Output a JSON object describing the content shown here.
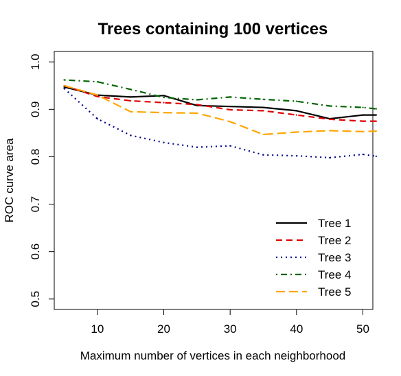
{
  "chart_data": {
    "type": "line",
    "title": "Trees containing 100 vertices",
    "xlabel": "Maximum number of vertices in each neighborhood",
    "ylabel": "ROC curve area",
    "xlim": [
      3.5,
      51.5
    ],
    "ylim": [
      0.478,
      1.022
    ],
    "x_ticks": [
      10,
      20,
      30,
      40,
      50
    ],
    "y_ticks": [
      0.5,
      0.6,
      0.7,
      0.8,
      0.9,
      1.0
    ],
    "x_tick_labels": [
      "10",
      "20",
      "30",
      "40",
      "50"
    ],
    "y_tick_labels": [
      "0.5",
      "0.6",
      "0.7",
      "0.8",
      "0.9",
      "1.0"
    ],
    "grid": false,
    "legend_position": "bottom-right",
    "x": [
      5,
      10,
      15,
      20,
      25,
      30,
      35,
      40,
      45,
      50,
      52
    ],
    "series": [
      {
        "name": "Tree 1",
        "color": "#000000",
        "dash": "solid",
        "values": [
          0.947,
          0.93,
          0.926,
          0.929,
          0.908,
          0.906,
          0.904,
          0.897,
          0.88,
          0.888,
          0.888
        ]
      },
      {
        "name": "Tree 2",
        "color": "#e00000",
        "dash": "dashed",
        "values": [
          0.95,
          0.927,
          0.918,
          0.914,
          0.91,
          0.899,
          0.897,
          0.888,
          0.879,
          0.875,
          0.875
        ]
      },
      {
        "name": "Tree 3",
        "color": "#00008b",
        "dash": "dotted",
        "values": [
          0.944,
          0.88,
          0.845,
          0.83,
          0.82,
          0.823,
          0.804,
          0.802,
          0.798,
          0.805,
          0.801
        ]
      },
      {
        "name": "Tree 4",
        "color": "#006400",
        "dash": "dotdash",
        "values": [
          0.962,
          0.958,
          0.942,
          0.925,
          0.92,
          0.926,
          0.921,
          0.917,
          0.907,
          0.904,
          0.901
        ]
      },
      {
        "name": "Tree 5",
        "color": "#ffa500",
        "dash": "longdash",
        "values": [
          0.95,
          0.93,
          0.895,
          0.893,
          0.892,
          0.874,
          0.847,
          0.852,
          0.855,
          0.853,
          0.854
        ]
      }
    ]
  }
}
